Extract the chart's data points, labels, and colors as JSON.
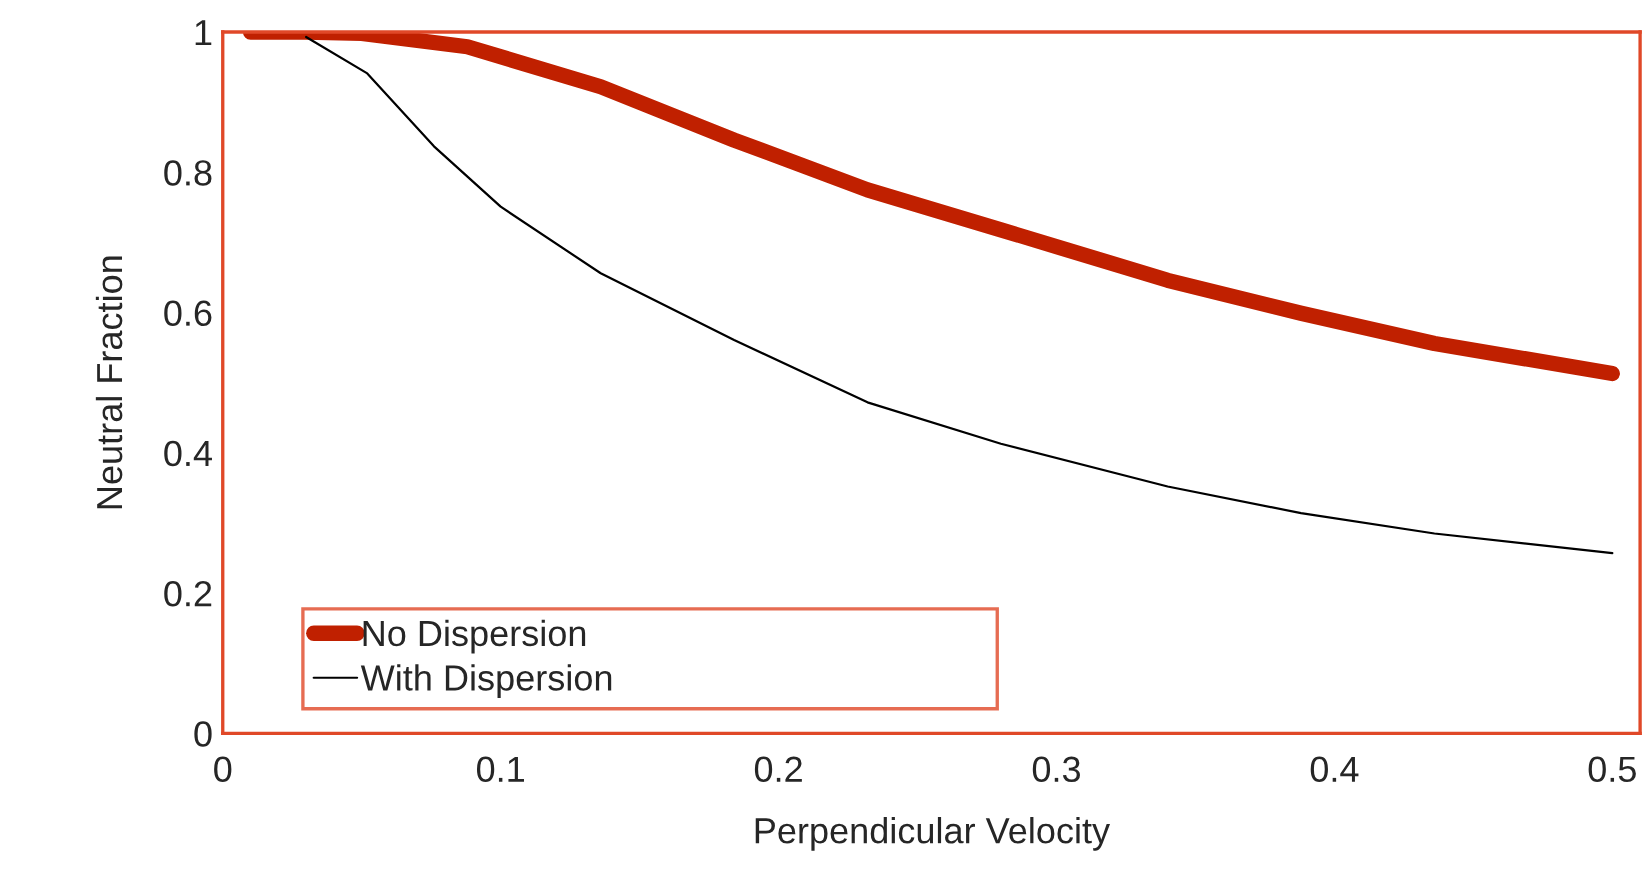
{
  "chart_data": {
    "type": "line",
    "xlabel": "Perpendicular Velocity",
    "ylabel": "Neutral Fraction",
    "xlim": [
      0,
      0.51
    ],
    "ylim": [
      0,
      1
    ],
    "xticks": [
      0,
      0.1,
      0.2,
      0.3,
      0.4,
      0.5
    ],
    "yticks": [
      0,
      0.2,
      0.4,
      0.6,
      0.8,
      1
    ],
    "grid": false,
    "legend": "bottom left",
    "marker": "none",
    "line_style": "solid",
    "series": [
      {
        "name": "No Dispersion",
        "color": "#c02000",
        "x": [
          0.01,
          0.03,
          0.05,
          0.088,
          0.136,
          0.184,
          0.232,
          0.28,
          0.34,
          0.388,
          0.436,
          0.5
        ],
        "values": [
          1,
          1,
          0.998,
          0.979,
          0.922,
          0.846,
          0.775,
          0.718,
          0.646,
          0.599,
          0.556,
          0.513
        ]
      },
      {
        "name": "With Dispersion",
        "color": "#000000",
        "x": [
          0.03,
          0.052,
          0.076,
          0.1,
          0.136,
          0.184,
          0.232,
          0.28,
          0.34,
          0.388,
          0.436,
          0.5
        ],
        "values": [
          0.993,
          0.941,
          0.837,
          0.751,
          0.656,
          0.561,
          0.472,
          0.413,
          0.352,
          0.314,
          0.285,
          0.257
        ]
      }
    ]
  }
}
